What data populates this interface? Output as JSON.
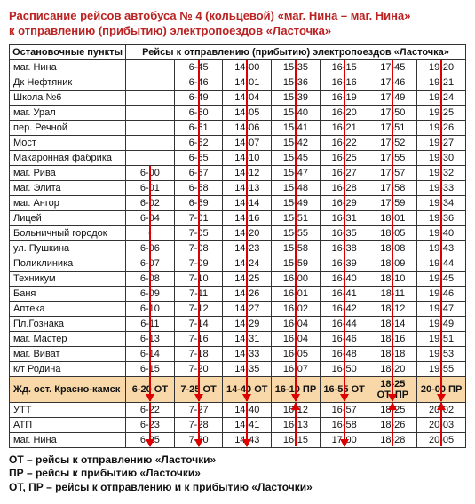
{
  "title_line1": "Расписание рейсов автобуса № 4 (кольцевой) «маг. Нина – маг. Нина»",
  "title_line2": "к отправлению (прибытию) электропоездов «Ласточка»",
  "header_stops": "Остановочные пункты",
  "header_trips": "Рейсы к отправлению (прибытию) электропоездов «Ласточка»",
  "stops": [
    "маг. Нина",
    "Дк Нефтяник",
    "Школа №6",
    "маг. Урал",
    "пер. Речной",
    "Мост",
    "Макаронная фабрика",
    "маг. Рива",
    "маг. Элита",
    "маг. Ангор",
    "Лицей",
    "Больничный городок",
    "ул. Пушкина",
    "Поликлиника",
    "Техникум",
    "Баня",
    "Аптека",
    "Пл.Гознака",
    "маг. Мастер",
    "маг. Виват",
    "к/т Родина",
    "Жд. ост. Красно-камск",
    "УТТ",
    "АТП",
    "маг. Нина"
  ],
  "highlight_row_index": 21,
  "columns": [
    {
      "dir": "down",
      "times": [
        "",
        "",
        "",
        "",
        "",
        "",
        "",
        "6-00",
        "6-01",
        "6-02",
        "6-04",
        "-",
        "6-06",
        "6-07",
        "6-08",
        "6-09",
        "6-10",
        "6-11",
        "6-13",
        "6-14",
        "6-15",
        "6-20 ОТ",
        "6-22",
        "6-23",
        "6-25"
      ]
    },
    {
      "dir": "down",
      "times": [
        "6-45",
        "6-46",
        "6-49",
        "6-50",
        "6-51",
        "6-52",
        "6-55",
        "6-57",
        "6-58",
        "6-59",
        "7-01",
        "7-05",
        "7-08",
        "7-09",
        "7-10",
        "7-11",
        "7-12",
        "7-14",
        "7-16",
        "7-18",
        "7-20",
        "7-25 ОТ",
        "7-27",
        "7-28",
        "7-30"
      ]
    },
    {
      "dir": "down",
      "times": [
        "14-00",
        "14-01",
        "14-04",
        "14-05",
        "14-06",
        "14-07",
        "14-10",
        "14-12",
        "14-13",
        "14-14",
        "14-16",
        "14-20",
        "14-23",
        "14-24",
        "14-25",
        "14-26",
        "14-27",
        "14-29",
        "14-31",
        "14-33",
        "14-35",
        "14-40 ОТ",
        "14-40",
        "14-41",
        "14-43"
      ]
    },
    {
      "dir": "up",
      "times": [
        "15-35",
        "15-36",
        "15-39",
        "15-40",
        "15-41",
        "15-42",
        "15-45",
        "15-47",
        "15-48",
        "15-49",
        "15-51",
        "15-55",
        "15-58",
        "15-59",
        "16-00",
        "16-01",
        "16-02",
        "16-04",
        "16-04",
        "16-05",
        "16-07",
        "16-10 ПР",
        "16-12",
        "16-13",
        "16-15"
      ]
    },
    {
      "dir": "down",
      "times": [
        "16-15",
        "16-16",
        "16-19",
        "16-20",
        "16-21",
        "16-22",
        "16-25",
        "16-27",
        "16-28",
        "16-29",
        "16-31",
        "16-35",
        "16-38",
        "16-39",
        "16-40",
        "16-41",
        "16-42",
        "16-44",
        "16-46",
        "16-48",
        "16-50",
        "16-55 ОТ",
        "16-57",
        "16-58",
        "17-00"
      ]
    },
    {
      "dir": "up",
      "times": [
        "17-45",
        "17-46",
        "17-49",
        "17-50",
        "17-51",
        "17-52",
        "17-55",
        "17-57",
        "17-58",
        "17-59",
        "18-01",
        "18-05",
        "18-08",
        "18-09",
        "18-10",
        "18-11",
        "18-12",
        "18-14",
        "18-16",
        "18-18",
        "18-20",
        "18-25 ОТ, ПР",
        "18-25",
        "18-26",
        "18-28"
      ]
    },
    {
      "dir": "up",
      "times": [
        "19-20",
        "19-21",
        "19-24",
        "19-25",
        "19-26",
        "19-27",
        "19-30",
        "19-32",
        "19-33",
        "19-34",
        "19-36",
        "19-40",
        "19-43",
        "19-44",
        "19-45",
        "19-46",
        "19-47",
        "19-49",
        "19-51",
        "19-53",
        "19-55",
        "20-00 ПР",
        "20-02",
        "20-03",
        "20-05"
      ]
    }
  ],
  "legend": [
    "ОТ – рейсы к отправлению «Ласточки»",
    "ПР – рейсы к прибытию «Ласточки»",
    "ОТ, ПР – рейсы к отправлению и к прибытию «Ласточки»"
  ],
  "colors": {
    "title": "#b22222",
    "arrow": "#d00000",
    "highlight_bg": "#f8d8a8",
    "border": "#333333"
  }
}
